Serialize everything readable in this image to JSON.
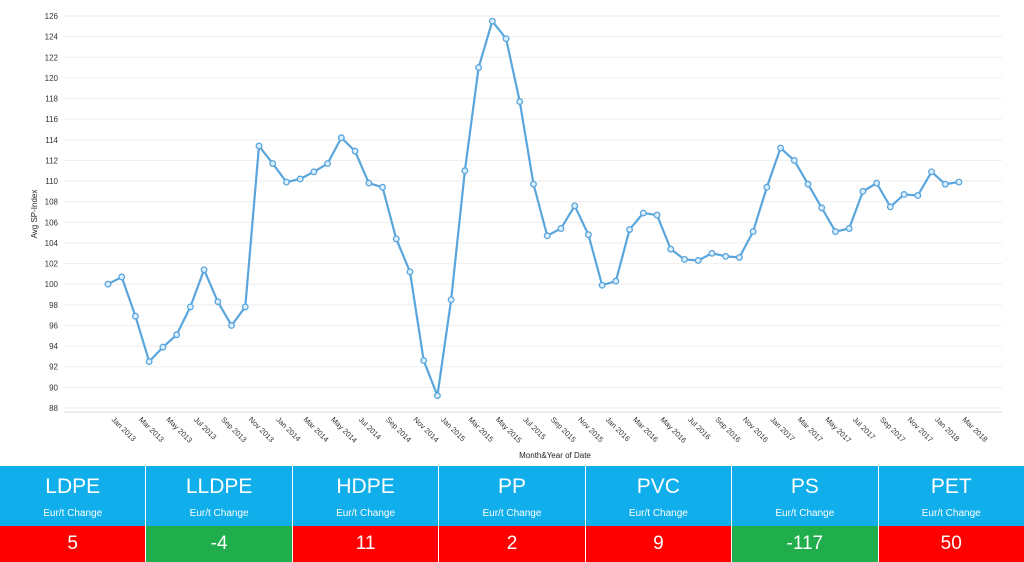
{
  "chart_data": {
    "type": "line",
    "xlabel": "Month&Year of Date",
    "ylabel": "Avg SP-Index",
    "ylim": [
      88,
      126
    ],
    "yticks": [
      88,
      90,
      92,
      94,
      96,
      98,
      100,
      102,
      104,
      106,
      108,
      110,
      112,
      114,
      116,
      118,
      120,
      122,
      124,
      126
    ],
    "grid": true,
    "line_color": "#5aa6dc",
    "tick_labels": [
      "Jan 2013",
      "Mar 2013",
      "May 2013",
      "Jul 2013",
      "Sep 2013",
      "Nov 2013",
      "Jan 2014",
      "Mar 2014",
      "May 2014",
      "Jul 2014",
      "Sep 2014",
      "Nov 2014",
      "Jan 2015",
      "Mar 2015",
      "May 2015",
      "Jul 2015",
      "Sep 2015",
      "Nov 2015",
      "Jan 2016",
      "Mar 2016",
      "May 2016",
      "Jul 2016",
      "Sep 2016",
      "Nov 2016",
      "Jan 2017",
      "Mar 2017",
      "May 2017",
      "Jul 2017",
      "Sep 2017",
      "Nov 2017",
      "Jan 2018",
      "Mar 2018"
    ],
    "x": [
      "Jan 2013",
      "Feb 2013",
      "Mar 2013",
      "Apr 2013",
      "May 2013",
      "Jun 2013",
      "Jul 2013",
      "Aug 2013",
      "Sep 2013",
      "Oct 2013",
      "Nov 2013",
      "Dec 2013",
      "Jan 2014",
      "Feb 2014",
      "Mar 2014",
      "Apr 2014",
      "May 2014",
      "Jun 2014",
      "Jul 2014",
      "Aug 2014",
      "Sep 2014",
      "Oct 2014",
      "Nov 2014",
      "Dec 2014",
      "Jan 2015",
      "Feb 2015",
      "Mar 2015",
      "Apr 2015",
      "May 2015",
      "Jun 2015",
      "Jul 2015",
      "Aug 2015",
      "Sep 2015",
      "Oct 2015",
      "Nov 2015",
      "Dec 2015",
      "Jan 2016",
      "Feb 2016",
      "Mar 2016",
      "Apr 2016",
      "May 2016",
      "Jun 2016",
      "Jul 2016",
      "Aug 2016",
      "Sep 2016",
      "Oct 2016",
      "Nov 2016",
      "Dec 2016",
      "Jan 2017",
      "Feb 2017",
      "Mar 2017",
      "Apr 2017",
      "May 2017",
      "Jun 2017",
      "Jul 2017",
      "Aug 2017",
      "Sep 2017",
      "Oct 2017",
      "Nov 2017",
      "Dec 2017",
      "Jan 2018",
      "Feb 2018",
      "Mar 2018"
    ],
    "values": [
      100.0,
      100.7,
      96.9,
      92.5,
      93.9,
      95.1,
      97.8,
      101.4,
      98.3,
      96.0,
      97.8,
      113.4,
      111.7,
      109.9,
      110.2,
      110.9,
      111.7,
      114.2,
      112.9,
      109.8,
      109.4,
      104.4,
      101.2,
      92.6,
      89.2,
      98.5,
      111.0,
      121.0,
      125.5,
      123.8,
      117.7,
      109.7,
      104.7,
      105.4,
      107.6,
      104.8,
      99.9,
      100.3,
      105.3,
      106.9,
      106.7,
      103.4,
      102.4,
      102.3,
      103.0,
      102.7,
      102.6,
      105.1,
      109.4,
      113.2,
      112.0,
      109.7,
      107.4,
      105.1,
      105.4,
      109.0,
      109.8,
      107.5,
      108.7,
      108.6,
      110.9,
      109.7,
      109.9
    ]
  },
  "tiles": [
    {
      "name": "LDPE",
      "sub": "Eur/t Change",
      "value": "5",
      "color": "#ff0000"
    },
    {
      "name": "LLDPE",
      "sub": "Eur/t Change",
      "value": "-4",
      "color": "#1fae4b"
    },
    {
      "name": "HDPE",
      "sub": "Eur/t Change",
      "value": "11",
      "color": "#ff0000"
    },
    {
      "name": "PP",
      "sub": "Eur/t Change",
      "value": "2",
      "color": "#ff0000"
    },
    {
      "name": "PVC",
      "sub": "Eur/t Change",
      "value": "9",
      "color": "#ff0000"
    },
    {
      "name": "PS",
      "sub": "Eur/t Change",
      "value": "-117",
      "color": "#1fae4b"
    },
    {
      "name": "PET",
      "sub": "Eur/t Change",
      "value": "50",
      "color": "#ff0000"
    }
  ],
  "tile_header_color": "#10aeea"
}
